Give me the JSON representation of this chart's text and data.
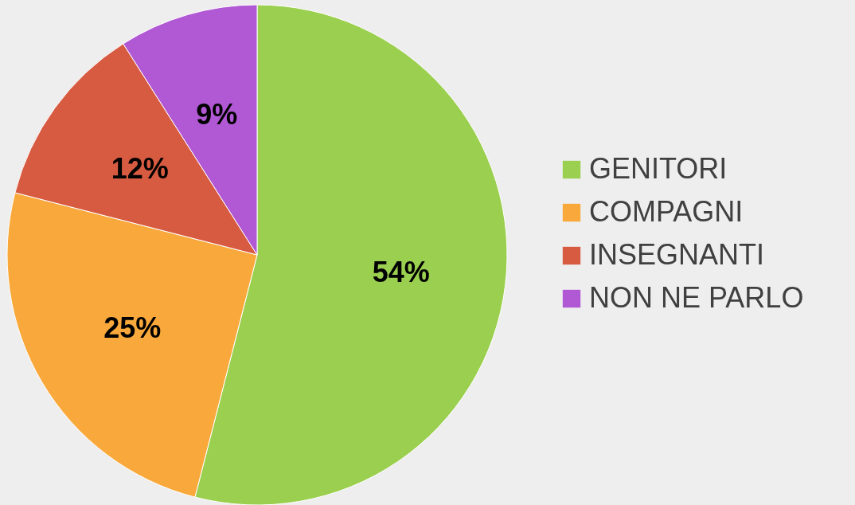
{
  "chart_data": {
    "type": "pie",
    "categories": [
      "GENITORI",
      "COMPAGNI",
      "INSEGNANTI",
      "NON NE PARLO"
    ],
    "values": [
      54,
      25,
      12,
      9
    ],
    "colors": [
      "#9bcf4f",
      "#f9a93b",
      "#d75b41",
      "#b158d4"
    ],
    "value_labels": [
      "54%",
      "25%",
      "12%",
      "9%"
    ],
    "legend": "right"
  }
}
